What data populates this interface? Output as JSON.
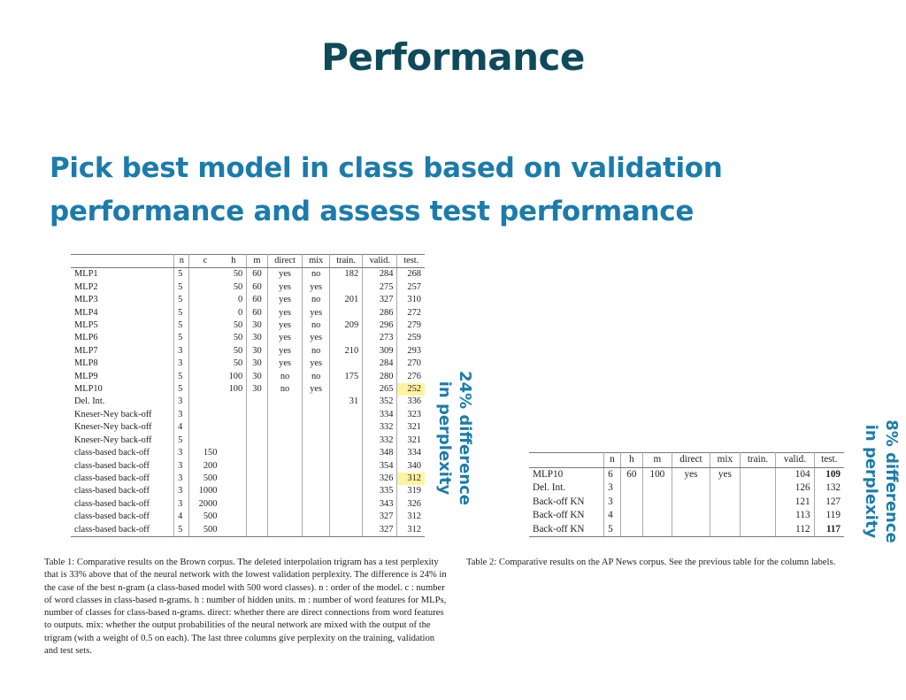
{
  "slide": {
    "title": "Performance",
    "subtitle_line1": "Pick best model in class based on validation",
    "subtitle_line2": "performance and assess test performance"
  },
  "table1": {
    "columns": [
      "",
      "n",
      "c",
      "h",
      "m",
      "direct",
      "mix",
      "train.",
      "valid.",
      "test."
    ],
    "rows": [
      [
        "MLP1",
        "5",
        "",
        "50",
        "60",
        "yes",
        "no",
        "182",
        "284",
        "268"
      ],
      [
        "MLP2",
        "5",
        "",
        "50",
        "60",
        "yes",
        "yes",
        "",
        "275",
        "257"
      ],
      [
        "MLP3",
        "5",
        "",
        "0",
        "60",
        "yes",
        "no",
        "201",
        "327",
        "310"
      ],
      [
        "MLP4",
        "5",
        "",
        "0",
        "60",
        "yes",
        "yes",
        "",
        "286",
        "272"
      ],
      [
        "MLP5",
        "5",
        "",
        "50",
        "30",
        "yes",
        "no",
        "209",
        "296",
        "279"
      ],
      [
        "MLP6",
        "5",
        "",
        "50",
        "30",
        "yes",
        "yes",
        "",
        "273",
        "259"
      ],
      [
        "MLP7",
        "3",
        "",
        "50",
        "30",
        "yes",
        "no",
        "210",
        "309",
        "293"
      ],
      [
        "MLP8",
        "3",
        "",
        "50",
        "30",
        "yes",
        "yes",
        "",
        "284",
        "270"
      ],
      [
        "MLP9",
        "5",
        "",
        "100",
        "30",
        "no",
        "no",
        "175",
        "280",
        "276"
      ],
      [
        "MLP10",
        "5",
        "",
        "100",
        "30",
        "no",
        "yes",
        "",
        "265",
        "252"
      ],
      [
        "Del. Int.",
        "3",
        "",
        "",
        "",
        "",
        "",
        "31",
        "352",
        "336"
      ],
      [
        "Kneser-Ney back-off",
        "3",
        "",
        "",
        "",
        "",
        "",
        "",
        "334",
        "323"
      ],
      [
        "Kneser-Ney back-off",
        "4",
        "",
        "",
        "",
        "",
        "",
        "",
        "332",
        "321"
      ],
      [
        "Kneser-Ney back-off",
        "5",
        "",
        "",
        "",
        "",
        "",
        "",
        "332",
        "321"
      ],
      [
        "class-based back-off",
        "3",
        "150",
        "",
        "",
        "",
        "",
        "",
        "348",
        "334"
      ],
      [
        "class-based back-off",
        "3",
        "200",
        "",
        "",
        "",
        "",
        "",
        "354",
        "340"
      ],
      [
        "class-based back-off",
        "3",
        "500",
        "",
        "",
        "",
        "",
        "",
        "326",
        "312"
      ],
      [
        "class-based back-off",
        "3",
        "1000",
        "",
        "",
        "",
        "",
        "",
        "335",
        "319"
      ],
      [
        "class-based back-off",
        "3",
        "2000",
        "",
        "",
        "",
        "",
        "",
        "343",
        "326"
      ],
      [
        "class-based back-off",
        "4",
        "500",
        "",
        "",
        "",
        "",
        "",
        "327",
        "312"
      ],
      [
        "class-based back-off",
        "5",
        "500",
        "",
        "",
        "",
        "",
        "",
        "327",
        "312"
      ]
    ],
    "highlighted_cells": [
      [
        9,
        9
      ],
      [
        16,
        9
      ]
    ],
    "highlight_color": "#fff3a0",
    "caption": "Table 1:  Comparative results on the Brown corpus. The deleted interpolation trigram has a test perplexity that is 33% above that of the neural network with the lowest validation perplexity. The difference is 24% in the case of the best n-gram (a class-based model with 500 word classes). n : order of the model. c : number of word classes in class-based n-grams. h : number of hidden units. m : number of word features for MLPs, number of classes for class-based n-grams. direct: whether there are direct connections from word features to outputs. mix: whether the output probabilities of the neural network are mixed with the output of the trigram (with a weight of 0.5 on each). The last three columns give perplexity on the training, validation and test sets."
  },
  "table2": {
    "columns": [
      "",
      "n",
      "h",
      "m",
      "direct",
      "mix",
      "train.",
      "valid.",
      "test."
    ],
    "rows": [
      [
        "MLP10",
        "6",
        "60",
        "100",
        "yes",
        "yes",
        "",
        "104",
        "109"
      ],
      [
        "Del. Int.",
        "3",
        "",
        "",
        "",
        "",
        "",
        "126",
        "132"
      ],
      [
        "Back-off KN",
        "3",
        "",
        "",
        "",
        "",
        "",
        "121",
        "127"
      ],
      [
        "Back-off KN",
        "4",
        "",
        "",
        "",
        "",
        "",
        "113",
        "119"
      ],
      [
        "Back-off KN",
        "5",
        "",
        "",
        "",
        "",
        "",
        "112",
        "117"
      ]
    ],
    "bold_cells": [
      [
        0,
        8
      ],
      [
        4,
        8
      ]
    ],
    "caption": "Table 2:  Comparative results on the AP News corpus. See the previous table for the column labels."
  },
  "annotations": {
    "table1_note_line1": "24% difference",
    "table1_note_line2": "in perplexity",
    "table2_note_line1": "8% difference",
    "table2_note_line2": "in perplexity"
  },
  "colors": {
    "title": "#0f4a5a",
    "accent_blue": "#1b7cab"
  }
}
